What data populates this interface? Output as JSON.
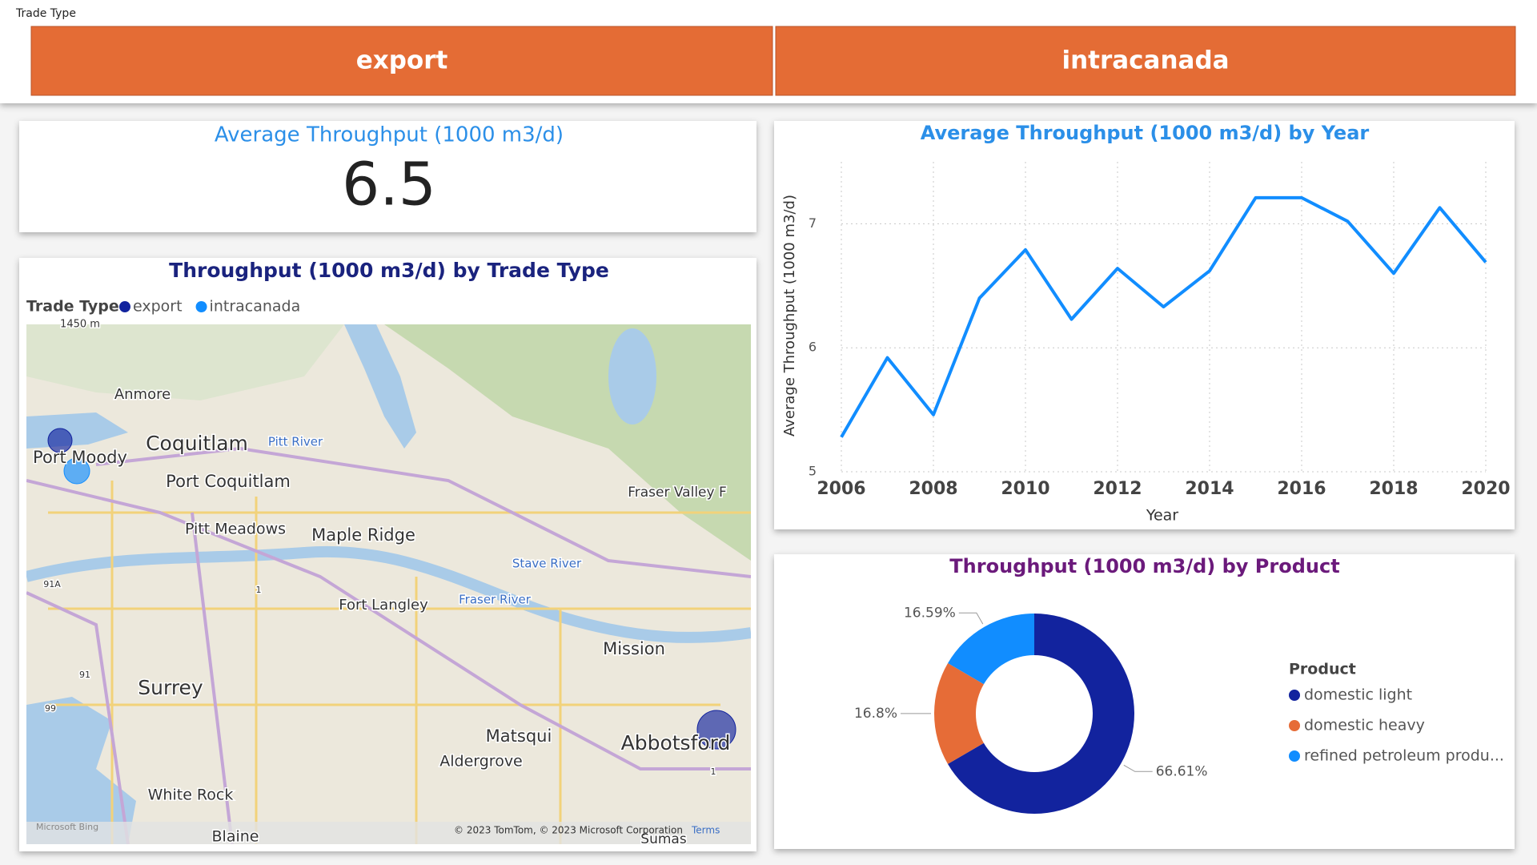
{
  "slicer": {
    "title": "Trade Type",
    "options": [
      "export",
      "intracanada"
    ]
  },
  "card": {
    "title": "Average Throughput (1000 m3/d)",
    "value": "6.5"
  },
  "map": {
    "title": "Throughput (1000 m3/d) by Trade Type",
    "legend_title": "Trade Type",
    "legend": [
      {
        "name": "export",
        "color": "#12239E"
      },
      {
        "name": "intracanada",
        "color": "#118DFF"
      }
    ],
    "places": [
      "1450 m",
      "Anmore",
      "Coquitlam",
      "Port Moody",
      "Port Coquitlam",
      "Pitt River",
      "Pitt Meadows",
      "Maple Ridge",
      "Fort Langley",
      "Stave River",
      "Fraser River",
      "Fraser Valley F",
      "Mission",
      "Surrey",
      "Matsqui",
      "Abbotsford",
      "Aldergrove",
      "White Rock",
      "Blaine",
      "Sumas",
      "91A",
      "91",
      "99",
      "1",
      "1"
    ],
    "attribution": "© 2023 TomTom, © 2023 Microsoft Corporation",
    "terms": "Terms",
    "brand": "Microsoft Bing"
  },
  "chart_data": [
    {
      "type": "line",
      "title": "Average Throughput (1000 m3/d) by Year",
      "x_label": "Year",
      "y_label": "Average Throughput (1000 m3/d)",
      "x": [
        2006,
        2007,
        2008,
        2009,
        2010,
        2011,
        2012,
        2013,
        2014,
        2015,
        2016,
        2017,
        2018,
        2019,
        2020
      ],
      "values": [
        5.28,
        5.92,
        5.46,
        6.4,
        6.79,
        6.23,
        6.64,
        6.33,
        6.62,
        7.21,
        7.21,
        7.02,
        6.6,
        7.13,
        6.69
      ],
      "color": "#118DFF",
      "xlim": [
        2006,
        2020
      ],
      "xticks": [
        2006,
        2008,
        2010,
        2012,
        2014,
        2016,
        2018,
        2020
      ],
      "ylim": [
        5,
        7.5
      ],
      "yticks": [
        5,
        6,
        7
      ],
      "grid": true
    },
    {
      "type": "donut",
      "title": "Throughput (1000 m3/d) by Product",
      "legend_title": "Product",
      "categories": [
        "domestic light",
        "domestic heavy",
        "refined petroleum produ..."
      ],
      "values": [
        66.61,
        16.8,
        16.59
      ],
      "value_labels": [
        "66.61%",
        "16.8%",
        "16.59%"
      ],
      "colors": [
        "#12239E",
        "#E66C37",
        "#118DFF"
      ],
      "legend": "right"
    }
  ]
}
